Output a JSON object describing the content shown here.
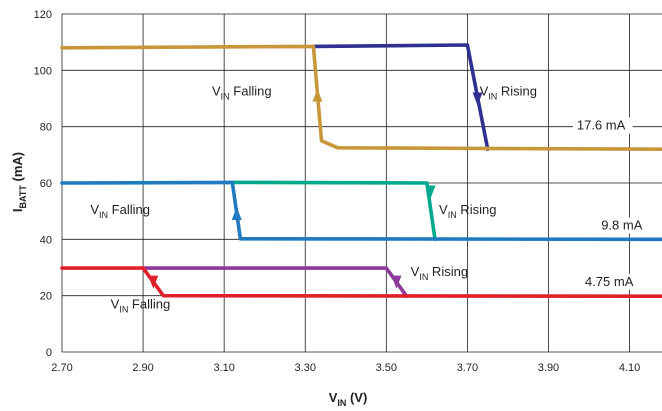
{
  "chart_data": {
    "type": "line",
    "title": "",
    "xlabel": {
      "main": "V",
      "sub": "IN",
      "unit": " (V)"
    },
    "ylabel": {
      "main": "I",
      "sub": "BATT",
      "unit": " (mA)"
    },
    "xlim": [
      2.7,
      4.18
    ],
    "ylim": [
      0,
      120
    ],
    "grid": true,
    "x_ticks": [
      2.7,
      2.9,
      3.1,
      3.3,
      3.5,
      3.7,
      3.9,
      4.1
    ],
    "x_tick_labels": [
      "2.70",
      "2.90",
      "3.10",
      "3.30",
      "3.50",
      "3.70",
      "3.90",
      "4.10"
    ],
    "y_ticks": [
      0,
      20,
      40,
      60,
      80,
      100,
      120
    ],
    "y_tick_labels": [
      "0",
      "20",
      "40",
      "60",
      "80",
      "100",
      "120"
    ],
    "colors": {
      "grid": "#231f20",
      "text": "#231f20"
    },
    "series": [
      {
        "id": "s1-rising",
        "color": "#2e3192",
        "points": [
          [
            3.32,
            108.5
          ],
          [
            3.7,
            109
          ],
          [
            3.75,
            72
          ]
        ],
        "arrow": {
          "at": 3.725,
          "value": 90,
          "direction": "down"
        }
      },
      {
        "id": "s1-falling",
        "color": "#c8973a",
        "points": [
          [
            2.7,
            108
          ],
          [
            3.32,
            108.5
          ],
          [
            3.34,
            75
          ],
          [
            3.38,
            72.5
          ],
          [
            4.18,
            72
          ]
        ],
        "arrow": {
          "at": 3.33,
          "value": 91,
          "direction": "up"
        }
      },
      {
        "id": "s2-rising",
        "color": "#00a88f",
        "points": [
          [
            3.12,
            60.2
          ],
          [
            3.6,
            60
          ],
          [
            3.62,
            40
          ]
        ],
        "arrow": {
          "at": 3.609,
          "value": 57,
          "direction": "down"
        }
      },
      {
        "id": "s2-falling",
        "color": "#1f7ac0",
        "points": [
          [
            2.7,
            60
          ],
          [
            3.12,
            60.2
          ],
          [
            3.14,
            40.2
          ],
          [
            4.18,
            40
          ]
        ],
        "arrow": {
          "at": 3.131,
          "value": 49,
          "direction": "up"
        }
      },
      {
        "id": "s3-rising",
        "color": "#8e3a9d",
        "points": [
          [
            2.9,
            29.8
          ],
          [
            3.5,
            29.8
          ],
          [
            3.55,
            19.8
          ]
        ],
        "arrow": {
          "at": 3.525,
          "value": 25,
          "direction": "down"
        }
      },
      {
        "id": "s3-falling",
        "color": "#e0202a",
        "points": [
          [
            2.7,
            29.8
          ],
          [
            2.9,
            29.8
          ],
          [
            2.95,
            20
          ],
          [
            4.18,
            19.8
          ]
        ],
        "arrow": {
          "at": 2.925,
          "value": 25,
          "direction": "down"
        }
      }
    ],
    "annotations": [
      {
        "id": "label-falling-1",
        "main": "V",
        "sub": "IN",
        "rest": " Falling",
        "x": 3.07,
        "y": 91
      },
      {
        "id": "label-rising-1",
        "main": "V",
        "sub": "IN",
        "rest": " Rising",
        "x": 3.73,
        "y": 91
      },
      {
        "id": "label-falling-2",
        "main": "V",
        "sub": "IN",
        "rest": " Falling",
        "x": 2.77,
        "y": 49
      },
      {
        "id": "label-rising-2",
        "main": "V",
        "sub": "IN",
        "rest": " Rising",
        "x": 3.63,
        "y": 49
      },
      {
        "id": "label-rising-3",
        "main": "V",
        "sub": "IN",
        "rest": " Rising",
        "x": 3.56,
        "y": 27
      },
      {
        "id": "label-falling-3",
        "main": "V",
        "sub": "IN",
        "rest": " Falling",
        "x": 2.82,
        "y": 15.5
      }
    ],
    "value_labels": [
      {
        "id": "label-17-6",
        "text": "17.6 mA",
        "x": 3.97,
        "y": 79
      },
      {
        "id": "label-9-8",
        "text": "9.8 mA",
        "x": 4.03,
        "y": 43.5
      },
      {
        "id": "label-4-75",
        "text": "4.75 mA",
        "x": 3.99,
        "y": 23.5
      }
    ]
  }
}
